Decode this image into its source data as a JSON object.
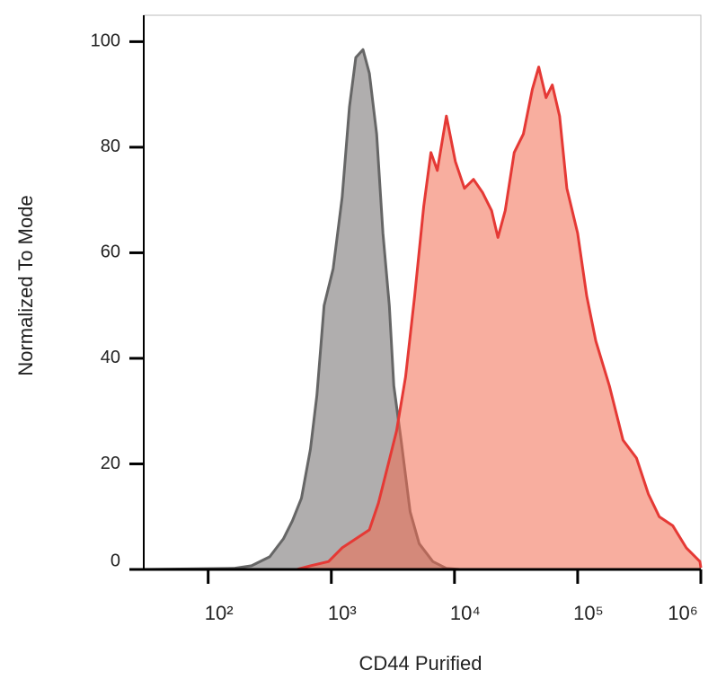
{
  "chart_data": {
    "type": "area",
    "x_label": "CD44 Purified",
    "y_label": "Normalized To Mode",
    "xscale": "log",
    "xlim": [
      30,
      1000000
    ],
    "ylim": [
      0,
      105
    ],
    "xticks": [
      {
        "value": 100,
        "label": "10²"
      },
      {
        "value": 1000,
        "label": "10³"
      },
      {
        "value": 10000,
        "label": "10⁴"
      },
      {
        "value": 100000,
        "label": "10⁵"
      },
      {
        "value": 1000000,
        "label": "10⁶"
      }
    ],
    "yticks": [
      0,
      20,
      40,
      60,
      80,
      100
    ],
    "series": [
      {
        "color": "#666666",
        "fill": "#b0aeae",
        "fill_opacity": 1,
        "x": [
          30,
          161,
          225,
          316,
          408,
          483,
          572,
          677,
          763,
          874,
          1035,
          1225,
          1403,
          1581,
          1808,
          2037,
          2333,
          2626,
          2956,
          3215,
          3683,
          4363,
          5168,
          6664,
          8590,
          11070,
          1000000
        ],
        "values": [
          0,
          0.2,
          0.7,
          2.4,
          5.8,
          9.2,
          13.5,
          22.8,
          33,
          50,
          57,
          70.5,
          87.6,
          97,
          98.5,
          94,
          82.5,
          63.7,
          50,
          34.8,
          24.5,
          10.9,
          4.9,
          1.5,
          0.2,
          0,
          0
        ]
      },
      {
        "color": "#e53935",
        "fill": "#f26b50",
        "fill_opacity": 0.55,
        "x": [
          30,
          526,
          677,
          950,
          1225,
          1581,
          2037,
          2412,
          2858,
          3383,
          4006,
          4745,
          5623,
          6438,
          7248,
          8590,
          10170,
          12050,
          14270,
          16900,
          20000,
          22540,
          25820,
          30550,
          36220,
          42870,
          48310,
          55320,
          62230,
          71290,
          81660,
          100000,
          118500,
          140300,
          180800,
          233300,
          300600,
          375000,
          459200,
          591600,
          762100,
          984000,
          1000000
        ],
        "values": [
          0,
          0,
          0.7,
          1.5,
          4.1,
          5.8,
          7.5,
          12.6,
          19.4,
          26.2,
          36.5,
          51.8,
          68.8,
          79,
          75.6,
          85.9,
          77.3,
          72.2,
          73.9,
          71.4,
          68,
          62.9,
          68,
          79,
          82.5,
          91,
          95.2,
          89.4,
          91.8,
          85.9,
          72.2,
          63.7,
          51.8,
          43.3,
          34.8,
          24.5,
          21.1,
          14.3,
          10,
          8.3,
          4.1,
          1.5,
          0.3
        ]
      }
    ]
  }
}
